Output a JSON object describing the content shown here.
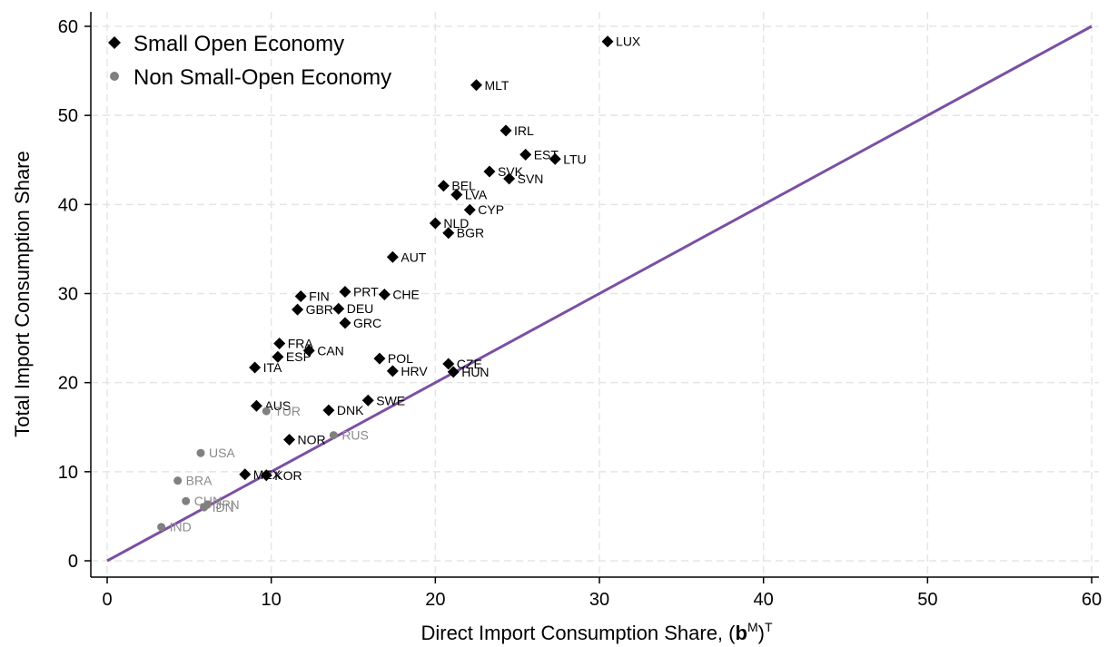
{
  "chart_data": {
    "type": "scatter",
    "title": "",
    "xlabel": "Direct Import Consumption Share, (",
    "xlabel_bold": "b",
    "xlabel_super_1": "M",
    "xlabel_mid": ")",
    "xlabel_super_2": "T",
    "ylabel": "Total Import Consumption Share",
    "xlim": [
      0,
      60
    ],
    "ylim": [
      0,
      60
    ],
    "xticks": [
      0,
      10,
      20,
      30,
      40,
      50,
      60
    ],
    "yticks": [
      0,
      10,
      20,
      30,
      40,
      50,
      60
    ],
    "grid": true,
    "legend_position": "top-left",
    "reference_line": {
      "type": "45-degree",
      "from": [
        0,
        0
      ],
      "to": [
        60,
        60
      ],
      "color": "#7b4fa3"
    },
    "series": [
      {
        "name": "Small Open Economy",
        "marker": "diamond",
        "color": "#000000",
        "label_color": "#000000",
        "points": [
          {
            "label": "LUX",
            "x": 30.5,
            "y": 58.3
          },
          {
            "label": "MLT",
            "x": 22.5,
            "y": 53.4
          },
          {
            "label": "IRL",
            "x": 24.3,
            "y": 48.3
          },
          {
            "label": "EST",
            "x": 25.5,
            "y": 45.6
          },
          {
            "label": "LTU",
            "x": 27.3,
            "y": 45.1
          },
          {
            "label": "SVK",
            "x": 23.3,
            "y": 43.7
          },
          {
            "label": "SVN",
            "x": 24.5,
            "y": 42.9
          },
          {
            "label": "BEL",
            "x": 20.5,
            "y": 42.1
          },
          {
            "label": "LVA",
            "x": 21.3,
            "y": 41.1
          },
          {
            "label": "CYP",
            "x": 22.1,
            "y": 39.4
          },
          {
            "label": "NLD",
            "x": 20.0,
            "y": 37.9
          },
          {
            "label": "BGR",
            "x": 20.8,
            "y": 36.8
          },
          {
            "label": "AUT",
            "x": 17.4,
            "y": 34.1
          },
          {
            "label": "PRT",
            "x": 14.5,
            "y": 30.2
          },
          {
            "label": "CHE",
            "x": 16.9,
            "y": 29.9
          },
          {
            "label": "FIN",
            "x": 11.8,
            "y": 29.7
          },
          {
            "label": "GBR",
            "x": 11.6,
            "y": 28.2
          },
          {
            "label": "DEU",
            "x": 14.1,
            "y": 28.3
          },
          {
            "label": "GRC",
            "x": 14.5,
            "y": 26.7
          },
          {
            "label": "FRA",
            "x": 10.5,
            "y": 24.4
          },
          {
            "label": "CAN",
            "x": 12.3,
            "y": 23.6
          },
          {
            "label": "ESP",
            "x": 10.4,
            "y": 22.9
          },
          {
            "label": "ITA",
            "x": 9.0,
            "y": 21.7
          },
          {
            "label": "POL",
            "x": 16.6,
            "y": 22.7
          },
          {
            "label": "HRV",
            "x": 17.4,
            "y": 21.3
          },
          {
            "label": "CZE",
            "x": 20.8,
            "y": 22.1
          },
          {
            "label": "HUN",
            "x": 21.1,
            "y": 21.2
          },
          {
            "label": "SWE",
            "x": 15.9,
            "y": 18.0
          },
          {
            "label": "AUS",
            "x": 9.1,
            "y": 17.4
          },
          {
            "label": "DNK",
            "x": 13.5,
            "y": 16.9
          },
          {
            "label": "NOR",
            "x": 11.1,
            "y": 13.6
          },
          {
            "label": "MEX",
            "x": 8.4,
            "y": 9.7
          },
          {
            "label": "KOR",
            "x": 9.7,
            "y": 9.6
          }
        ]
      },
      {
        "name": "Non Small-Open Economy",
        "marker": "circle",
        "color": "#808080",
        "label_color": "#8a8a8a",
        "points": [
          {
            "label": "TUR",
            "x": 9.7,
            "y": 16.8
          },
          {
            "label": "RUS",
            "x": 13.8,
            "y": 14.1
          },
          {
            "label": "USA",
            "x": 5.7,
            "y": 12.1
          },
          {
            "label": "BRA",
            "x": 4.3,
            "y": 9.0
          },
          {
            "label": "CHN",
            "x": 4.8,
            "y": 6.7
          },
          {
            "label": "JPN",
            "x": 6.1,
            "y": 6.3
          },
          {
            "label": "IDN",
            "x": 5.9,
            "y": 6.0
          },
          {
            "label": "IND",
            "x": 3.3,
            "y": 3.8
          }
        ]
      }
    ]
  },
  "colors": {
    "background": "#ffffff",
    "grid": "#e5e5e5",
    "axis": "#000000",
    "reference_line": "#7b4fa3",
    "small_open": "#000000",
    "non_small_open": "#808080",
    "non_small_open_label": "#8a8a8a"
  }
}
